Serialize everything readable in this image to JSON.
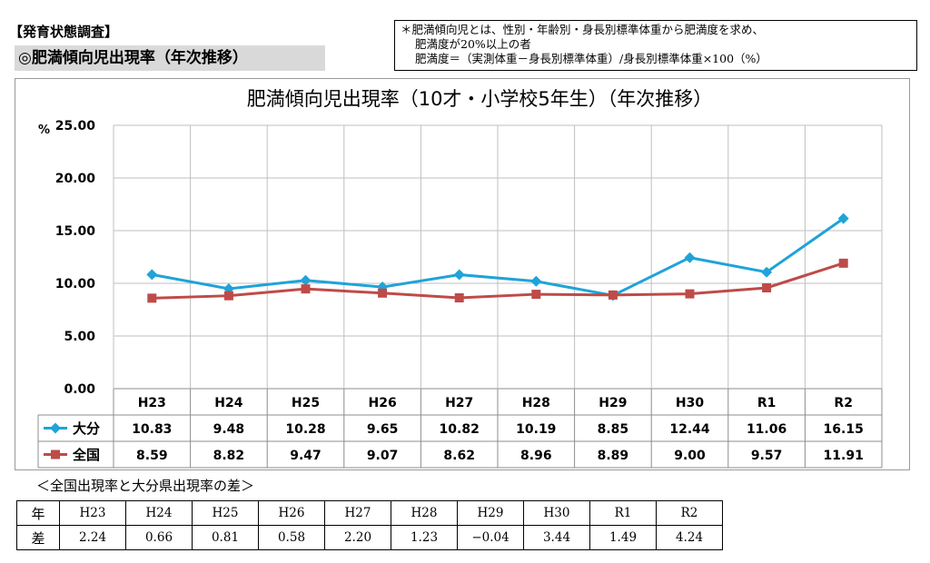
{
  "header": {
    "section_heading": "【発育状態調査】",
    "section_title": "◎肥満傾向児出現率（年次推移）"
  },
  "note": {
    "line1": "＊肥満傾向児とは、性別・年齢別・身長別標準体重から肥満度を求め、",
    "line2": "肥満度が20%以上の者",
    "line3": "肥満度＝（実測体重－身長別標準体重）/身長別標準体重×100（%）"
  },
  "chart_data": {
    "type": "line",
    "title": "肥満傾向児出現率（10才・小学校5年生）（年次推移）",
    "ylabel": "%",
    "ylim": [
      0,
      25
    ],
    "yticks": [
      "0.00",
      "5.00",
      "10.00",
      "15.00",
      "20.00",
      "25.00"
    ],
    "categories": [
      "H23",
      "H24",
      "H25",
      "H26",
      "H27",
      "H28",
      "H29",
      "H30",
      "R1",
      "R2"
    ],
    "grid": true,
    "legend_placement": "data-table-left",
    "series": [
      {
        "name": "大分",
        "color": "#1fa3d8",
        "marker": "diamond",
        "values": [
          10.83,
          9.48,
          10.28,
          9.65,
          10.82,
          10.19,
          8.85,
          12.44,
          11.06,
          16.15
        ],
        "labels": [
          "10.83",
          "9.48",
          "10.28",
          "9.65",
          "10.82",
          "10.19",
          "8.85",
          "12.44",
          "11.06",
          "16.15"
        ]
      },
      {
        "name": "全国",
        "color": "#be4b48",
        "marker": "square",
        "values": [
          8.59,
          8.82,
          9.47,
          9.07,
          8.62,
          8.96,
          8.89,
          9.0,
          9.57,
          11.91
        ],
        "labels": [
          "8.59",
          "8.82",
          "9.47",
          "9.07",
          "8.62",
          "8.96",
          "8.89",
          "9.00",
          "9.57",
          "11.91"
        ]
      }
    ]
  },
  "diff": {
    "caption": "＜全国出現率と大分県出現率の差＞",
    "year_header": "年",
    "diff_header": "差",
    "years": [
      "H23",
      "H24",
      "H25",
      "H26",
      "H27",
      "H28",
      "H29",
      "H30",
      "R1",
      "R2"
    ],
    "values": [
      "2.24",
      "0.66",
      "0.81",
      "0.58",
      "2.20",
      "1.23",
      "−0.04",
      "3.44",
      "1.49",
      "4.24"
    ]
  },
  "colors": {
    "oita": "#1fa3d8",
    "national": "#be4b48",
    "grid": "#bfbfbf",
    "title_band": "#d9d9d9"
  }
}
